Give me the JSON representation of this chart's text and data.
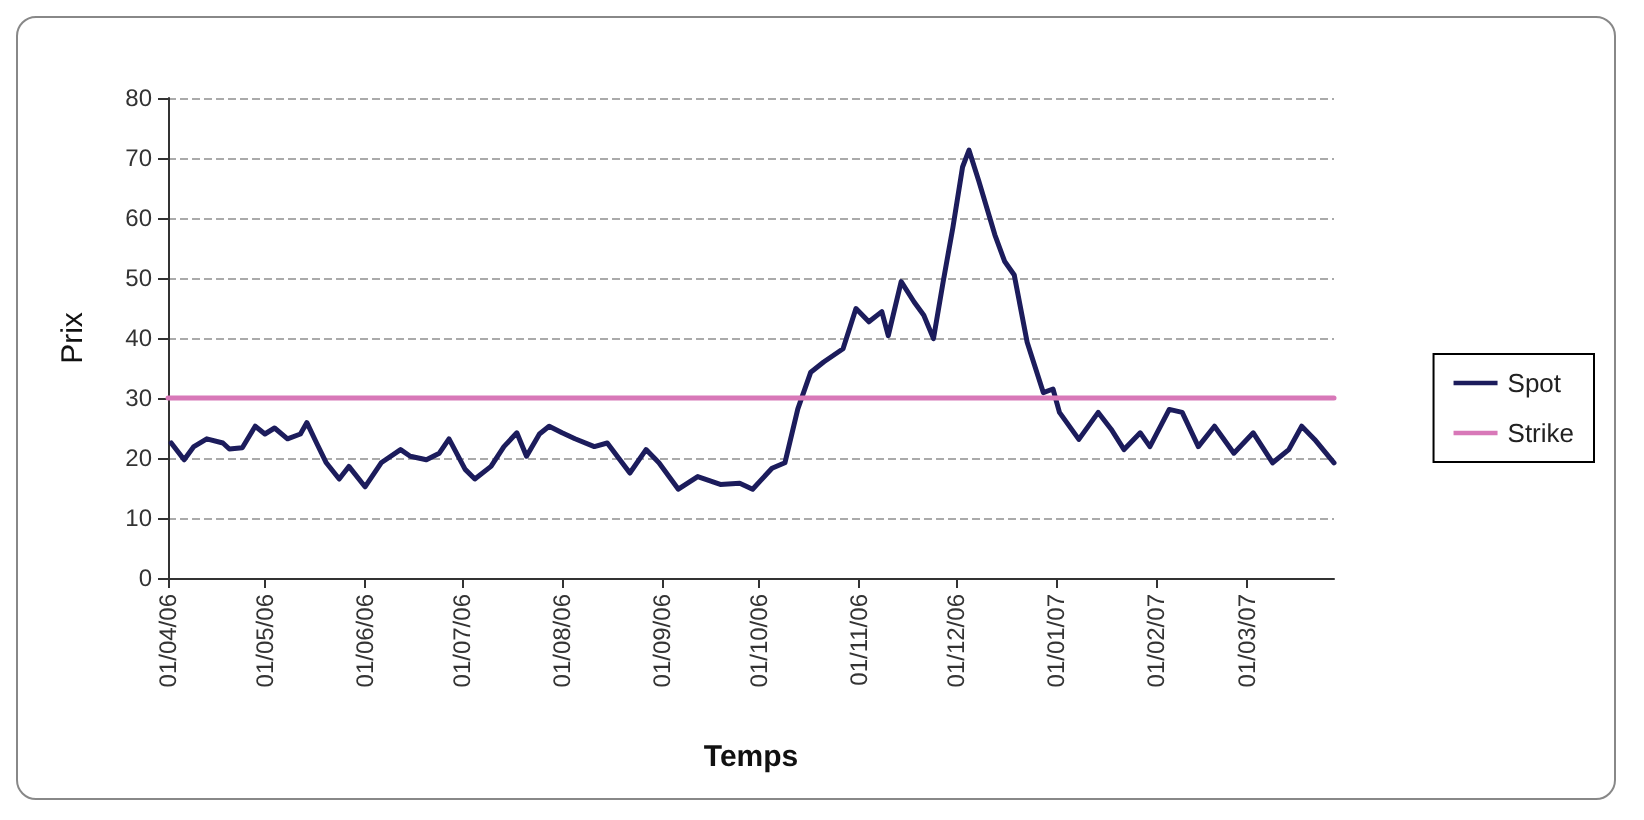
{
  "chart_data": {
    "type": "line",
    "xlabel": "Temps",
    "ylabel": "Prix",
    "xlim": [
      "2006-04-01",
      "2007-03-28"
    ],
    "ylim": [
      0,
      80
    ],
    "yticks": [
      0,
      10,
      20,
      30,
      40,
      50,
      60,
      70,
      80
    ],
    "xticks": [
      {
        "value": "2006-04-01",
        "label": "01/04/06"
      },
      {
        "value": "2006-05-01",
        "label": "01/05/06"
      },
      {
        "value": "2006-06-01",
        "label": "01/06/06"
      },
      {
        "value": "2006-07-01",
        "label": "01/07/06"
      },
      {
        "value": "2006-08-01",
        "label": "01/08/06"
      },
      {
        "value": "2006-09-01",
        "label": "01/09/06"
      },
      {
        "value": "2006-10-01",
        "label": "01/10/06"
      },
      {
        "value": "2006-11-01",
        "label": "01/11/06"
      },
      {
        "value": "2006-12-01",
        "label": "01/12/06"
      },
      {
        "value": "2007-01-01",
        "label": "01/01/07"
      },
      {
        "value": "2007-02-01",
        "label": "01/02/07"
      },
      {
        "value": "2007-03-01",
        "label": "01/03/07"
      }
    ],
    "grid": "y",
    "legend": "right",
    "marker": "none",
    "line_style": "solid",
    "series": [
      {
        "name": "Spot",
        "color": "#1c1c5c",
        "x": [
          "2006-04-02",
          "2006-04-06",
          "2006-04-09",
          "2006-04-13",
          "2006-04-18",
          "2006-04-20",
          "2006-04-24",
          "2006-04-28",
          "2006-05-01",
          "2006-05-04",
          "2006-05-08",
          "2006-05-12",
          "2006-05-14",
          "2006-05-17",
          "2006-05-20",
          "2006-05-24",
          "2006-05-27",
          "2006-06-01",
          "2006-06-06",
          "2006-06-12",
          "2006-06-15",
          "2006-06-20",
          "2006-06-24",
          "2006-06-27",
          "2006-07-02",
          "2006-07-05",
          "2006-07-10",
          "2006-07-14",
          "2006-07-18",
          "2006-07-21",
          "2006-07-25",
          "2006-07-28",
          "2006-08-01",
          "2006-08-05",
          "2006-08-11",
          "2006-08-15",
          "2006-08-22",
          "2006-08-27",
          "2006-08-31",
          "2006-09-06",
          "2006-09-12",
          "2006-09-19",
          "2006-09-25",
          "2006-09-29",
          "2006-10-05",
          "2006-10-09",
          "2006-10-13",
          "2006-10-17",
          "2006-10-21",
          "2006-10-27",
          "2006-10-31",
          "2006-11-04",
          "2006-11-08",
          "2006-11-10",
          "2006-11-14",
          "2006-11-18",
          "2006-11-21",
          "2006-11-24",
          "2006-11-27",
          "2006-11-30",
          "2006-12-03",
          "2006-12-05",
          "2006-12-08",
          "2006-12-13",
          "2006-12-16",
          "2006-12-19",
          "2006-12-23",
          "2006-12-28",
          "2006-12-31",
          "2007-01-02",
          "2007-01-08",
          "2007-01-14",
          "2007-01-18",
          "2007-01-22",
          "2007-01-27",
          "2007-01-30",
          "2007-02-05",
          "2007-02-09",
          "2007-02-14",
          "2007-02-19",
          "2007-02-25",
          "2007-03-03",
          "2007-03-09",
          "2007-03-14",
          "2007-03-18",
          "2007-03-22",
          "2007-03-28"
        ],
        "values": [
          22.5,
          19.7,
          21.9,
          23.2,
          22.5,
          21.5,
          21.7,
          25.3,
          24,
          25,
          23.2,
          24,
          25.9,
          22.5,
          19.2,
          16.5,
          18.6,
          15.2,
          19.2,
          21.4,
          20.3,
          19.7,
          20.8,
          23.2,
          18.1,
          16.5,
          18.6,
          21.9,
          24.2,
          20.3,
          24,
          25.3,
          24.2,
          23.2,
          21.9,
          22.5,
          17.5,
          21.4,
          19.2,
          14.8,
          16.9,
          15.6,
          15.8,
          14.8,
          18.3,
          19.2,
          28.2,
          34.3,
          36,
          38.2,
          44.9,
          42.7,
          44.4,
          40.4,
          49.4,
          46,
          43.8,
          39.9,
          49.4,
          58.4,
          68.5,
          71.3,
          66.2,
          57.2,
          52.8,
          50.5,
          39.3,
          30.9,
          31.5,
          27.6,
          23.1,
          27.6,
          24.8,
          21.4,
          24.2,
          21.9,
          28.1,
          27.6,
          21.9,
          25.3,
          20.8,
          24.2,
          19.2,
          21.4,
          25.3,
          23.1,
          19.2
        ]
      },
      {
        "name": "Strike",
        "color": "#d878b8",
        "x": [
          "2006-04-01",
          "2007-03-28"
        ],
        "values": [
          30,
          30
        ]
      }
    ]
  }
}
